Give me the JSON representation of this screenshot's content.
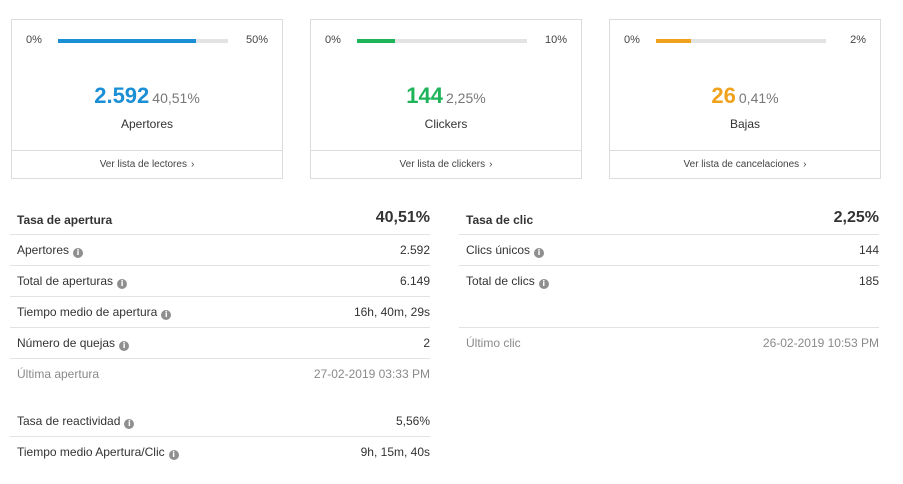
{
  "cards": [
    {
      "min": "0%",
      "max": "50%",
      "fill_fraction": 0.81,
      "color": "#1a8fd6",
      "value": "2.592",
      "percent": "40,51%",
      "label": "Apertores",
      "link": "Ver lista de lectores"
    },
    {
      "min": "0%",
      "max": "10%",
      "fill_fraction": 0.225,
      "color": "#1fb45a",
      "value": "144",
      "percent": "2,25%",
      "label": "Clickers",
      "link": "Ver lista de clickers"
    },
    {
      "min": "0%",
      "max": "2%",
      "fill_fraction": 0.205,
      "color": "#f0a21e",
      "value": "26",
      "percent": "0,41%",
      "label": "Bajas",
      "link": "Ver lista de cancelaciones"
    }
  ],
  "chevron": "›",
  "info_glyph": "i",
  "open_stats": {
    "title": "Tasa de apertura",
    "title_value": "40,51%",
    "rows": [
      {
        "label": "Apertores",
        "value": "2.592"
      },
      {
        "label": "Total de aperturas",
        "value": "6.149"
      },
      {
        "label": "Tiempo medio de apertura",
        "value": "16h, 40m, 29s"
      },
      {
        "label": "Número de quejas",
        "value": "2"
      }
    ],
    "last_label": "Última apertura",
    "last_value": "27-02-2019 03:33 PM",
    "extra_rows": [
      {
        "label": "Tasa de reactividad",
        "value": "5,56%"
      },
      {
        "label": "Tiempo medio Apertura/Clic",
        "value": "9h, 15m, 40s"
      }
    ]
  },
  "click_stats": {
    "title": "Tasa de clic",
    "title_value": "2,25%",
    "rows": [
      {
        "label": "Clics únicos",
        "value": "144"
      },
      {
        "label": "Total de clics",
        "value": "185"
      }
    ],
    "last_label": "Último clic",
    "last_value": "26-02-2019 10:53 PM"
  }
}
